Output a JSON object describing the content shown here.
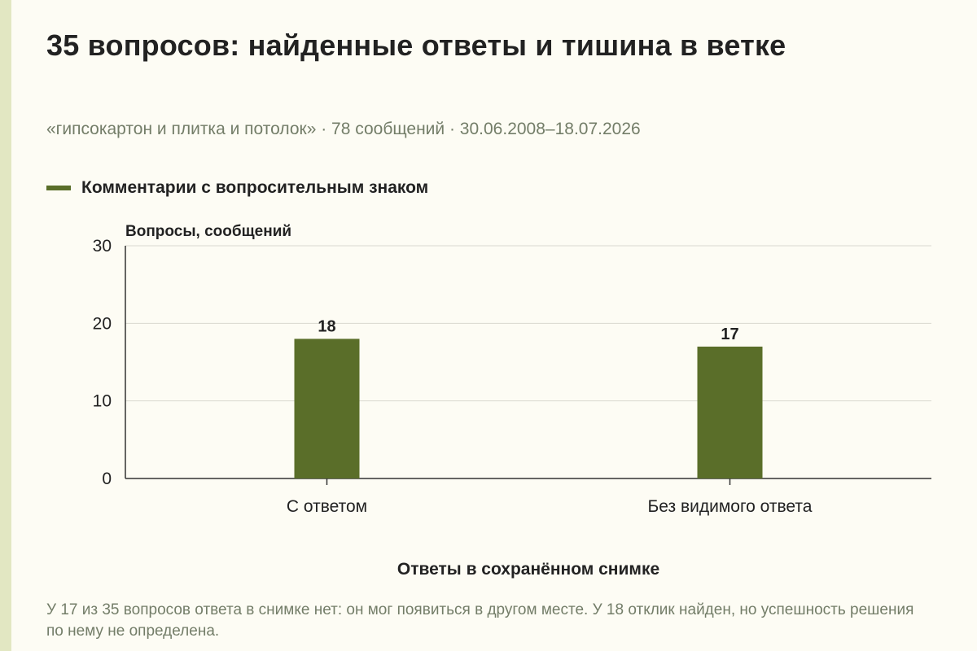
{
  "page": {
    "title": "35 вопросов: найденные ответы и тишина в ветке",
    "subtitle": "«гипсокартон и плитка и потолок» · 78 сообщений · 30.06.2008–18.07.2026",
    "note": "У 17 из 35 вопросов ответа в снимке нет: он мог появиться в другом месте. У 18 отклик найден, но успешность решения по нему не определена."
  },
  "colors": {
    "bar": "#5a6e29",
    "background": "#fdfcf4",
    "muted_text": "#737d68",
    "grid": "#d9d9d0"
  },
  "chart_data": {
    "type": "bar",
    "categories": [
      "С ответом",
      "Без видимого ответа"
    ],
    "series": [
      {
        "name": "Комментарии с вопросительным знаком",
        "values": [
          18,
          17
        ]
      }
    ],
    "ylabel": "Вопросы, сообщений",
    "xlabel": "Ответы в сохранённом снимке",
    "ylim": [
      0,
      30
    ],
    "yticks": [
      0,
      10,
      20,
      30
    ],
    "data_labels": [
      "18",
      "17"
    ],
    "grid": true,
    "legend_position": "top-left"
  }
}
